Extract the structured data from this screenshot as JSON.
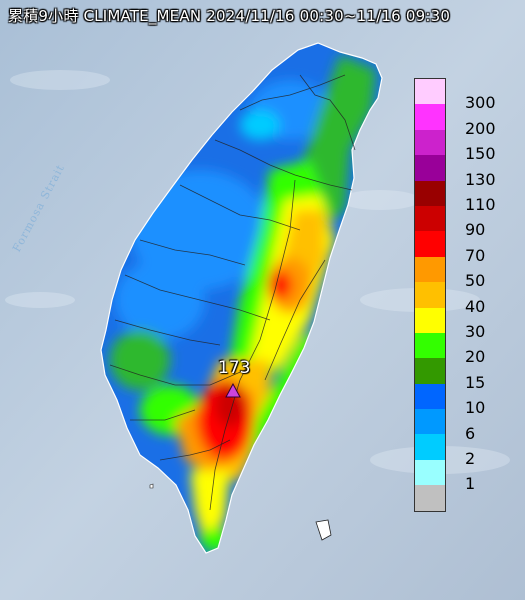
{
  "title": "累積9小時 CLIMATE_MEAN 2024/11/16 00:30~11/16 09:30",
  "strait_label": "Formosa Strait",
  "peak": {
    "value": "173",
    "marker_color": "#cc44dd"
  },
  "legend": [
    {
      "label": "300",
      "color": "#ffccff"
    },
    {
      "label": "200",
      "color": "#ff33ff"
    },
    {
      "label": "150",
      "color": "#cc22cc"
    },
    {
      "label": "130",
      "color": "#990099"
    },
    {
      "label": "110",
      "color": "#990000"
    },
    {
      "label": "90",
      "color": "#cc0000"
    },
    {
      "label": "70",
      "color": "#ff0000"
    },
    {
      "label": "50",
      "color": "#ff9900"
    },
    {
      "label": "40",
      "color": "#ffc000"
    },
    {
      "label": "30",
      "color": "#ffff00"
    },
    {
      "label": "20",
      "color": "#33ff00"
    },
    {
      "label": "15",
      "color": "#339900"
    },
    {
      "label": "10",
      "color": "#0066ff"
    },
    {
      "label": "6",
      "color": "#0099ff"
    },
    {
      "label": "2",
      "color": "#00ccff"
    },
    {
      "label": "1",
      "color": "#99ffff"
    },
    {
      "label": "",
      "color": "#c0c0c0"
    }
  ]
}
